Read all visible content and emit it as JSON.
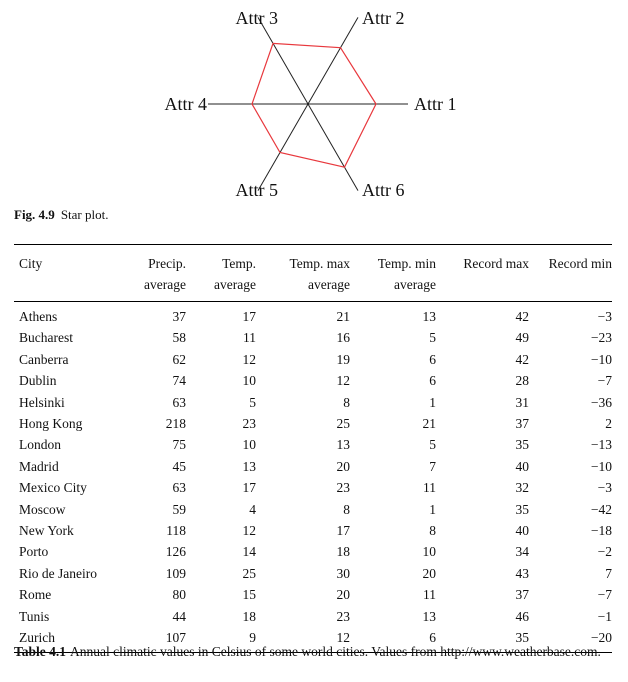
{
  "star_plot": {
    "axis_labels": [
      "Attr 1",
      "Attr 2",
      "Attr 3",
      "Attr 4",
      "Attr 5",
      "Attr 6"
    ],
    "values": [
      0.68,
      0.65,
      0.7,
      0.56,
      0.56,
      0.73
    ],
    "outline_color": "#e8383d",
    "axis_color": "#222222"
  },
  "figure_caption": {
    "label": "Fig. 4.9",
    "text": "Star plot."
  },
  "table": {
    "headers_row1": [
      "City",
      "Precip.",
      "Temp.",
      "Temp. max",
      "Temp. min",
      "Record max",
      "Record min"
    ],
    "headers_row2": [
      "",
      "average",
      "average",
      "average",
      "average",
      "",
      ""
    ],
    "rows": [
      [
        "Athens",
        "37",
        "17",
        "21",
        "13",
        "42",
        "−3"
      ],
      [
        "Bucharest",
        "58",
        "11",
        "16",
        "5",
        "49",
        "−23"
      ],
      [
        "Canberra",
        "62",
        "12",
        "19",
        "6",
        "42",
        "−10"
      ],
      [
        "Dublin",
        "74",
        "10",
        "12",
        "6",
        "28",
        "−7"
      ],
      [
        "Helsinki",
        "63",
        "5",
        "8",
        "1",
        "31",
        "−36"
      ],
      [
        "Hong Kong",
        "218",
        "23",
        "25",
        "21",
        "37",
        "2"
      ],
      [
        "London",
        "75",
        "10",
        "13",
        "5",
        "35",
        "−13"
      ],
      [
        "Madrid",
        "45",
        "13",
        "20",
        "7",
        "40",
        "−10"
      ],
      [
        "Mexico City",
        "63",
        "17",
        "23",
        "11",
        "32",
        "−3"
      ],
      [
        "Moscow",
        "59",
        "4",
        "8",
        "1",
        "35",
        "−42"
      ],
      [
        "New York",
        "118",
        "12",
        "17",
        "8",
        "40",
        "−18"
      ],
      [
        "Porto",
        "126",
        "14",
        "18",
        "10",
        "34",
        "−2"
      ],
      [
        "Rio de Janeiro",
        "109",
        "25",
        "30",
        "20",
        "43",
        "7"
      ],
      [
        "Rome",
        "80",
        "15",
        "20",
        "11",
        "37",
        "−7"
      ],
      [
        "Tunis",
        "44",
        "18",
        "23",
        "13",
        "46",
        "−1"
      ],
      [
        "Zurich",
        "107",
        "9",
        "12",
        "6",
        "35",
        "−20"
      ]
    ]
  },
  "table_caption": {
    "label": "Table 4.1",
    "text": "Annual climatic values in Celsius of some world cities. Values from http://www.weatherbase.com."
  }
}
